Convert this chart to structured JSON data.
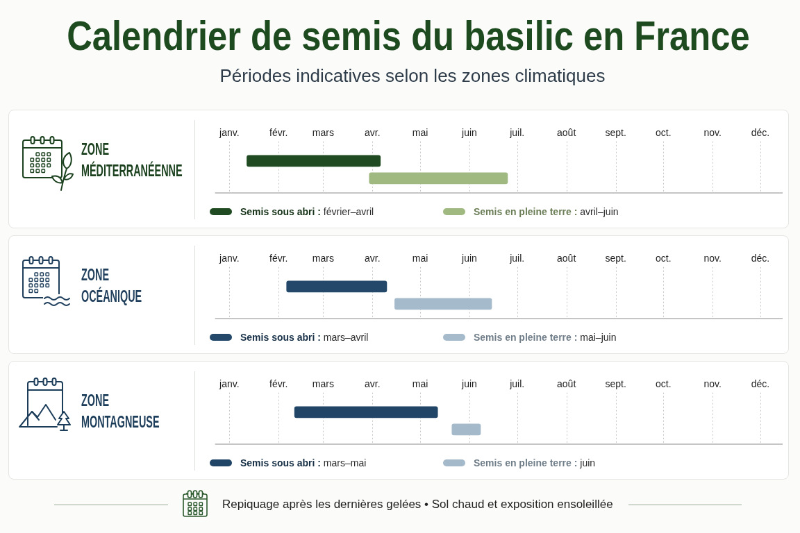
{
  "chart_data": [
    {
      "type": "other",
      "title": "Calendrier de semis du basilic en France",
      "subtitle": "Périodes indicatives selon les zones climatiques"
    },
    {
      "type": "bar",
      "orientation": "horizontal",
      "title": "ZONE MÉDITERRANÉENNE",
      "categories": [
        null,
        null
      ],
      "series": [
        {
          "name": "Semis sous abri : février–avril",
          "color": "#1f4a22",
          "values": [
            84,
            null
          ],
          "base": [
            11348,
            null
          ]
        },
        {
          "name": "Semis en pleine terre : avril–juin",
          "color": "#9fb980",
          "values": [
            null,
            87
          ],
          "base": [
            null,
            11425
          ]
        }
      ],
      "xlim": [
        "--01-06",
        "--12-29"
      ],
      "xticks": [
        {
          "value": "--01-15",
          "label": "janv."
        },
        {
          "value": "--02-15",
          "label": "févr."
        },
        {
          "value": "--03-15",
          "label": "mars"
        },
        {
          "value": "--04-15",
          "label": "avr."
        },
        {
          "value": "--05-15",
          "label": "mai"
        },
        {
          "value": "--06-15",
          "label": "juin"
        },
        {
          "value": "--07-15",
          "label": "juil."
        },
        {
          "value": "--08-15",
          "label": "août"
        },
        {
          "value": "--09-15",
          "label": "sept."
        },
        {
          "value": "--10-15",
          "label": "oct."
        },
        {
          "value": "--11-15",
          "label": "nov."
        },
        {
          "value": "--12-15",
          "label": "déc."
        }
      ],
      "grid": "x",
      "legend": "bottom"
    },
    {
      "type": "bar",
      "orientation": "horizontal",
      "title": "ZONE OCÉANIQUE",
      "categories": [
        null,
        null
      ],
      "series": [
        {
          "name": "Semis sous abri : mars–avril",
          "color": "#23486a",
          "values": [
            63,
            null
          ],
          "base": [
            11373,
            null
          ]
        },
        {
          "name": "Semis en pleine terre : mai–juin",
          "color": "#a5bacb",
          "values": [
            null,
            61
          ],
          "base": [
            null,
            11441
          ]
        }
      ],
      "xlim": [
        "--01-06",
        "--12-29"
      ],
      "xticks": [
        {
          "value": "--01-15",
          "label": "janv."
        },
        {
          "value": "--02-15",
          "label": "févr."
        },
        {
          "value": "--03-15",
          "label": "mars"
        },
        {
          "value": "--04-15",
          "label": "avr."
        },
        {
          "value": "--05-15",
          "label": "mai"
        },
        {
          "value": "--06-15",
          "label": "juin"
        },
        {
          "value": "--07-15",
          "label": "juil."
        },
        {
          "value": "--08-15",
          "label": "août"
        },
        {
          "value": "--09-15",
          "label": "sept."
        },
        {
          "value": "--10-15",
          "label": "oct."
        },
        {
          "value": "--11-15",
          "label": "nov."
        },
        {
          "value": "--12-15",
          "label": "déc."
        }
      ],
      "grid": "x",
      "legend": "bottom"
    },
    {
      "type": "bar",
      "orientation": "horizontal",
      "title": "ZONE MONTAGNEUSE",
      "categories": [
        null,
        null
      ],
      "series": [
        {
          "name": "Semis sous abri : mars–mai",
          "color": "#204566",
          "values": [
            90,
            null
          ],
          "base": [
            11378,
            null
          ]
        },
        {
          "name": "Semis en pleine terre : juin",
          "color": "#a4b9ca",
          "values": [
            null,
            18
          ],
          "base": [
            null,
            11477
          ]
        }
      ],
      "xlim": [
        "--01-06",
        "--12-29"
      ],
      "xticks": [
        {
          "value": "--01-15",
          "label": "janv."
        },
        {
          "value": "--02-15",
          "label": "févr."
        },
        {
          "value": "--03-15",
          "label": "mars"
        },
        {
          "value": "--04-15",
          "label": "avr."
        },
        {
          "value": "--05-15",
          "label": "mai"
        },
        {
          "value": "--06-15",
          "label": "juin"
        },
        {
          "value": "--07-15",
          "label": "juil."
        },
        {
          "value": "--08-15",
          "label": "août"
        },
        {
          "value": "--09-15",
          "label": "sept."
        },
        {
          "value": "--10-15",
          "label": "oct."
        },
        {
          "value": "--11-15",
          "label": "nov."
        },
        {
          "value": "--12-15",
          "label": "déc."
        }
      ],
      "grid": "x",
      "legend": "bottom"
    },
    {
      "type": "other",
      "annotations": [
        "Repiquage après les dernières gelées • Sol chaud et exposition ensoleillée"
      ]
    }
  ]
}
